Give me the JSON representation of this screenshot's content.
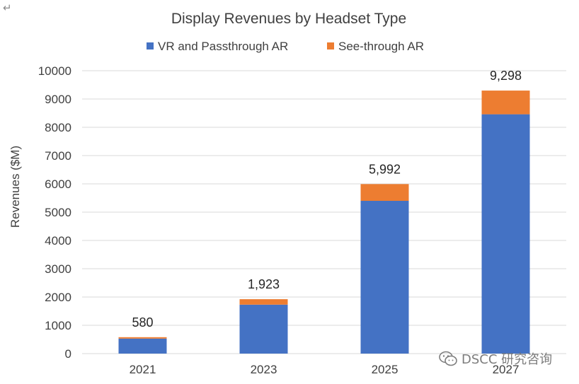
{
  "return_mark": "↵",
  "watermark": {
    "text": "DSCC 研究咨询",
    "icon": "wechat-icon"
  },
  "colors": {
    "series_1": "#4472C4",
    "series_2": "#ED7D31",
    "grid": "#D9D9D9",
    "text": "#404040"
  },
  "chart_data": {
    "type": "bar",
    "stacked": true,
    "title": "Display Revenues by Headset Type",
    "xlabel": "",
    "ylabel": "Revenues ($M)",
    "ylim": [
      0,
      10000
    ],
    "yticks": [
      0,
      1000,
      2000,
      3000,
      4000,
      5000,
      6000,
      7000,
      8000,
      9000,
      10000
    ],
    "grid": true,
    "legend_position": "top",
    "categories": [
      "2021",
      "2023",
      "2025",
      "2027"
    ],
    "series": [
      {
        "name": "VR and Passthrough AR",
        "values": [
          530,
          1730,
          5400,
          8460
        ]
      },
      {
        "name": "See-through AR",
        "values": [
          50,
          193,
          592,
          838
        ]
      }
    ],
    "total_labels": [
      "580",
      "1,923",
      "5,992",
      "9,298"
    ]
  }
}
